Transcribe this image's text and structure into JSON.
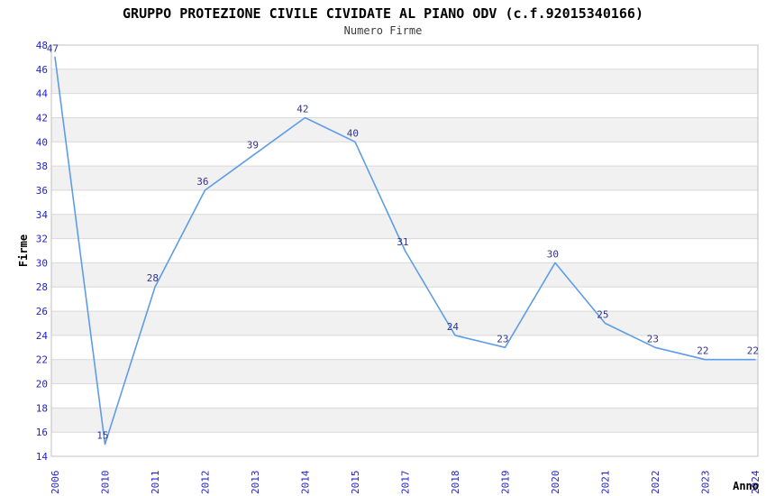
{
  "page": {
    "title": "GRUPPO PROTEZIONE CIVILE CIVIDATE AL PIANO ODV (c.f.92015340166)",
    "subtitle": "Numero Firme"
  },
  "chart_data": {
    "type": "line",
    "title": "GRUPPO PROTEZIONE CIVILE CIVIDATE AL PIANO ODV (c.f.92015340166)",
    "subtitle": "Numero Firme",
    "xlabel": "Anno",
    "ylabel": "Firme",
    "categories": [
      "2006",
      "2010",
      "2011",
      "2012",
      "2013",
      "2014",
      "2015",
      "2017",
      "2018",
      "2019",
      "2020",
      "2021",
      "2022",
      "2023",
      "2024"
    ],
    "values": [
      47,
      15,
      28,
      36,
      39,
      42,
      40,
      31,
      24,
      23,
      30,
      25,
      23,
      22,
      22
    ],
    "ylim": [
      14,
      48
    ],
    "ytick_step": 2,
    "yticks": [
      14,
      16,
      18,
      20,
      22,
      24,
      26,
      28,
      30,
      32,
      34,
      36,
      38,
      40,
      42,
      44,
      46,
      48
    ],
    "grid": true,
    "legend": "none",
    "x_axis_note": "categorical axis, year labels rotated 90 degrees, years 2007-2009 and 2016 absent",
    "style": {
      "line_color": "#5f9ce8",
      "data_label_color": "#333388",
      "tick_label_color": "#2222cc",
      "band_color": "#f1f1f1",
      "grid_color": "#d9d9d9",
      "border_color": "#c0c0c0",
      "axis_title_color": "#000000",
      "background_color": "#ffffff"
    }
  }
}
